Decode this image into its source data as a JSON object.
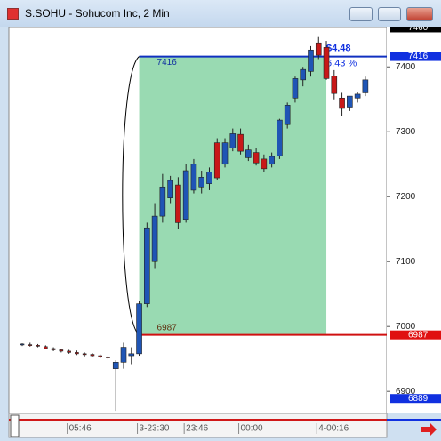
{
  "window_title": "S.SOHU - Sohucom Inc, 2 Min",
  "chart_data": {
    "type": "candlestick",
    "categories": [
      null,
      null,
      null,
      null,
      null,
      null,
      "05:46",
      null,
      null,
      null,
      null,
      null,
      null,
      null,
      null,
      "3-23:30",
      null,
      null,
      null,
      null,
      null,
      "23:46",
      null,
      null,
      null,
      null,
      null,
      null,
      "00:00",
      null,
      null,
      null,
      null,
      null,
      null,
      null,
      null,
      null,
      "4-00:16",
      null,
      null,
      null,
      null,
      null,
      null
    ],
    "ohlc": [
      [
        6972,
        6974,
        6970,
        6973
      ],
      [
        6972,
        6975,
        6969,
        6971
      ],
      [
        6971,
        6973,
        6968,
        6970
      ],
      [
        6969,
        6971,
        6965,
        6966
      ],
      [
        6966,
        6968,
        6962,
        6964
      ],
      [
        6964,
        6966,
        6960,
        6962
      ],
      [
        6962,
        6964,
        6958,
        6960
      ],
      [
        6960,
        6963,
        6956,
        6958
      ],
      [
        6958,
        6960,
        6954,
        6957
      ],
      [
        6957,
        6959,
        6953,
        6955
      ],
      [
        6955,
        6957,
        6951,
        6953
      ],
      [
        6953,
        6955,
        6949,
        6952
      ],
      [
        6935,
        6948,
        6870,
        6945
      ],
      [
        6945,
        6975,
        6935,
        6968
      ],
      [
        6955,
        6968,
        6942,
        6958
      ],
      [
        6958,
        7040,
        6955,
        7035
      ],
      [
        7035,
        7160,
        7030,
        7152
      ],
      [
        7100,
        7190,
        7090,
        7170
      ],
      [
        7170,
        7235,
        7160,
        7215
      ],
      [
        7198,
        7232,
        7190,
        7225
      ],
      [
        7218,
        7230,
        7150,
        7160
      ],
      [
        7165,
        7250,
        7160,
        7240
      ],
      [
        7210,
        7258,
        7205,
        7250
      ],
      [
        7215,
        7240,
        7205,
        7230
      ],
      [
        7220,
        7245,
        7210,
        7238
      ],
      [
        7283,
        7290,
        7225,
        7229
      ],
      [
        7250,
        7290,
        7245,
        7283
      ],
      [
        7275,
        7305,
        7270,
        7297
      ],
      [
        7296,
        7305,
        7265,
        7270
      ],
      [
        7260,
        7280,
        7255,
        7272
      ],
      [
        7268,
        7275,
        7248,
        7252
      ],
      [
        7258,
        7265,
        7238,
        7243
      ],
      [
        7250,
        7268,
        7245,
        7262
      ],
      [
        7263,
        7320,
        7258,
        7318
      ],
      [
        7311,
        7345,
        7305,
        7341
      ],
      [
        7352,
        7385,
        7345,
        7382
      ],
      [
        7380,
        7400,
        7370,
        7396
      ],
      [
        7393,
        7432,
        7385,
        7426
      ],
      [
        7437,
        7446,
        7412,
        7418
      ],
      [
        7430,
        7440,
        7380,
        7382
      ],
      [
        7386,
        7395,
        7350,
        7359
      ],
      [
        7352,
        7360,
        7325,
        7336
      ],
      [
        7338,
        7355,
        7332,
        7355
      ],
      [
        7352,
        7362,
        7345,
        7358
      ],
      [
        7360,
        7385,
        7355,
        7380
      ]
    ],
    "up_color": "#1f55b5",
    "down_color": "#c81818",
    "ylim": [
      6866,
      7462
    ],
    "yticks": [
      6900,
      7000,
      7100,
      7200,
      7300,
      7400
    ],
    "range_box": {
      "top": 7416,
      "bottom": 6987,
      "change": "$4.48",
      "percent": "6.43 %",
      "color": "#94d8ae"
    },
    "price_markers": [
      {
        "value": 7460,
        "color": "#000000"
      },
      {
        "value": 7416,
        "color": "#1030e0"
      },
      {
        "value": 6987,
        "color": "#e01010"
      },
      {
        "value": 6889,
        "color": "#1030e0"
      }
    ]
  }
}
